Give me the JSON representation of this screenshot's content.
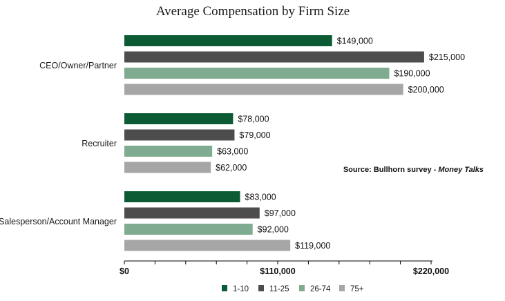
{
  "chart_data": {
    "type": "bar",
    "orientation": "horizontal",
    "title": "Average Compensation by Firm Size",
    "categories": [
      "CEO/Owner/Partner",
      "Recruiter",
      "Salesperson/Account Manager"
    ],
    "series": [
      {
        "name": "1-10",
        "color": "#0c5b34",
        "values": [
          149000,
          78000,
          83000
        ],
        "labels": [
          "$149,000",
          "$78,000",
          "$83,000"
        ]
      },
      {
        "name": "11-25",
        "color": "#4d4d4d",
        "values": [
          215000,
          79000,
          97000
        ],
        "labels": [
          "$215,000",
          "$79,000",
          "$97,000"
        ]
      },
      {
        "name": "26-74",
        "color": "#7fab90",
        "values": [
          190000,
          63000,
          92000
        ],
        "labels": [
          "$190,000",
          "$63,000",
          "$92,000"
        ]
      },
      {
        "name": "75+",
        "color": "#a6a6a6",
        "values": [
          200000,
          62000,
          119000
        ],
        "labels": [
          "$200,000",
          "$62,000",
          "$119,000"
        ]
      }
    ],
    "xlim": [
      0,
      220000
    ],
    "xticks": [
      {
        "value": 0,
        "label": "$0"
      },
      {
        "value": 110000,
        "label": "$110,000"
      },
      {
        "value": 220000,
        "label": "$220,000"
      }
    ],
    "minor_tick_step": 22000,
    "grid": false,
    "legend_position": "bottom",
    "source": {
      "prefix": "Source: Bullhorn survey - ",
      "emphasis": "Money Talks"
    }
  }
}
